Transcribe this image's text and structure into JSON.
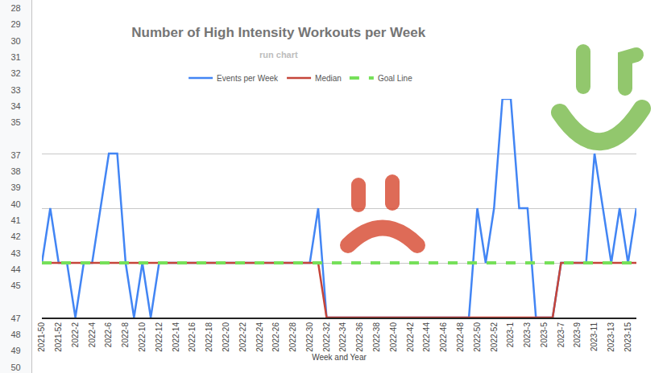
{
  "chart_data": {
    "type": "line",
    "title": "Number of High Intensity Workouts per Week",
    "subtitle": "run chart",
    "x_label": "Week and Year",
    "categories": [
      "2021-50",
      null,
      "2021-52",
      null,
      "2022-2",
      null,
      "2022-4",
      null,
      "2022-6",
      null,
      "2022-8",
      null,
      "2022-10",
      null,
      "2022-12",
      null,
      "2022-14",
      null,
      "2022-16",
      null,
      "2022-18",
      null,
      "2022-20",
      null,
      "2022-22",
      null,
      "2022-24",
      null,
      "2022-26",
      null,
      "2022-28",
      null,
      "2022-30",
      null,
      "2022-32",
      null,
      "2022-34",
      null,
      "2022-36",
      null,
      "2022-38",
      null,
      "2022-40",
      null,
      "2022-42",
      null,
      "2022-44",
      null,
      "2022-46",
      null,
      "2022-48",
      null,
      "2022-50",
      null,
      "2022-52",
      null,
      "2023-1",
      null,
      "2023-3",
      null,
      "2023-5",
      null,
      "2023-7",
      null,
      "2023-9",
      null,
      "2023-11",
      null,
      "2023-13",
      null,
      "2023-15",
      null
    ],
    "series": [
      {
        "name": "Events per Week",
        "color": "#4285f4",
        "line_style": "solid",
        "values": [
          1,
          2,
          1,
          1,
          0,
          1,
          1,
          2,
          3,
          3,
          1,
          0,
          1,
          0,
          1,
          1,
          1,
          1,
          1,
          1,
          1,
          1,
          1,
          1,
          1,
          1,
          1,
          1,
          1,
          1,
          1,
          1,
          1,
          2,
          0,
          0,
          0,
          0,
          0,
          0,
          0,
          0,
          0,
          0,
          0,
          0,
          0,
          0,
          0,
          0,
          0,
          0,
          2,
          1,
          2,
          4,
          4,
          2,
          2,
          0,
          0,
          0,
          1,
          1,
          1,
          1,
          3,
          2,
          1,
          2,
          1,
          2
        ]
      },
      {
        "name": "Median",
        "color": "#c5453a",
        "line_style": "solid",
        "values": [
          1,
          1,
          1,
          1,
          1,
          1,
          1,
          1,
          1,
          1,
          1,
          1,
          1,
          1,
          1,
          1,
          1,
          1,
          1,
          1,
          1,
          1,
          1,
          1,
          1,
          1,
          1,
          1,
          1,
          1,
          1,
          1,
          1,
          1,
          0,
          0,
          0,
          0,
          0,
          0,
          0,
          0,
          0,
          0,
          0,
          0,
          0,
          0,
          0,
          0,
          0,
          0,
          0,
          0,
          0,
          0,
          0,
          0,
          0,
          0,
          0,
          0,
          1,
          1,
          1,
          1,
          1,
          1,
          1,
          1,
          1,
          1
        ]
      },
      {
        "name": "Goal Line",
        "color": "#76e05a",
        "line_style": "dashed",
        "values": [
          1,
          1,
          1,
          1,
          1,
          1,
          1,
          1,
          1,
          1,
          1,
          1,
          1,
          1,
          1,
          1,
          1,
          1,
          1,
          1,
          1,
          1,
          1,
          1,
          1,
          1,
          1,
          1,
          1,
          1,
          1,
          1,
          1,
          1,
          1,
          1,
          1,
          1,
          1,
          1,
          1,
          1,
          1,
          1,
          1,
          1,
          1,
          1,
          1,
          1,
          1,
          1,
          1,
          1,
          1,
          1,
          1,
          1,
          1,
          1,
          1,
          1,
          1,
          1,
          1,
          1,
          1,
          1,
          1,
          1,
          1,
          1
        ]
      }
    ],
    "ylim": [
      0,
      4
    ],
    "yticks": [
      0,
      1,
      2,
      3,
      4
    ],
    "grid": true,
    "tick_labels": "x",
    "legend": "top"
  },
  "spreadsheet": {
    "row_numbers": [
      28,
      29,
      30,
      31,
      32,
      33,
      34,
      35,
      37,
      38,
      39,
      40,
      41,
      42,
      43,
      44,
      45,
      47,
      48,
      49,
      50
    ]
  }
}
